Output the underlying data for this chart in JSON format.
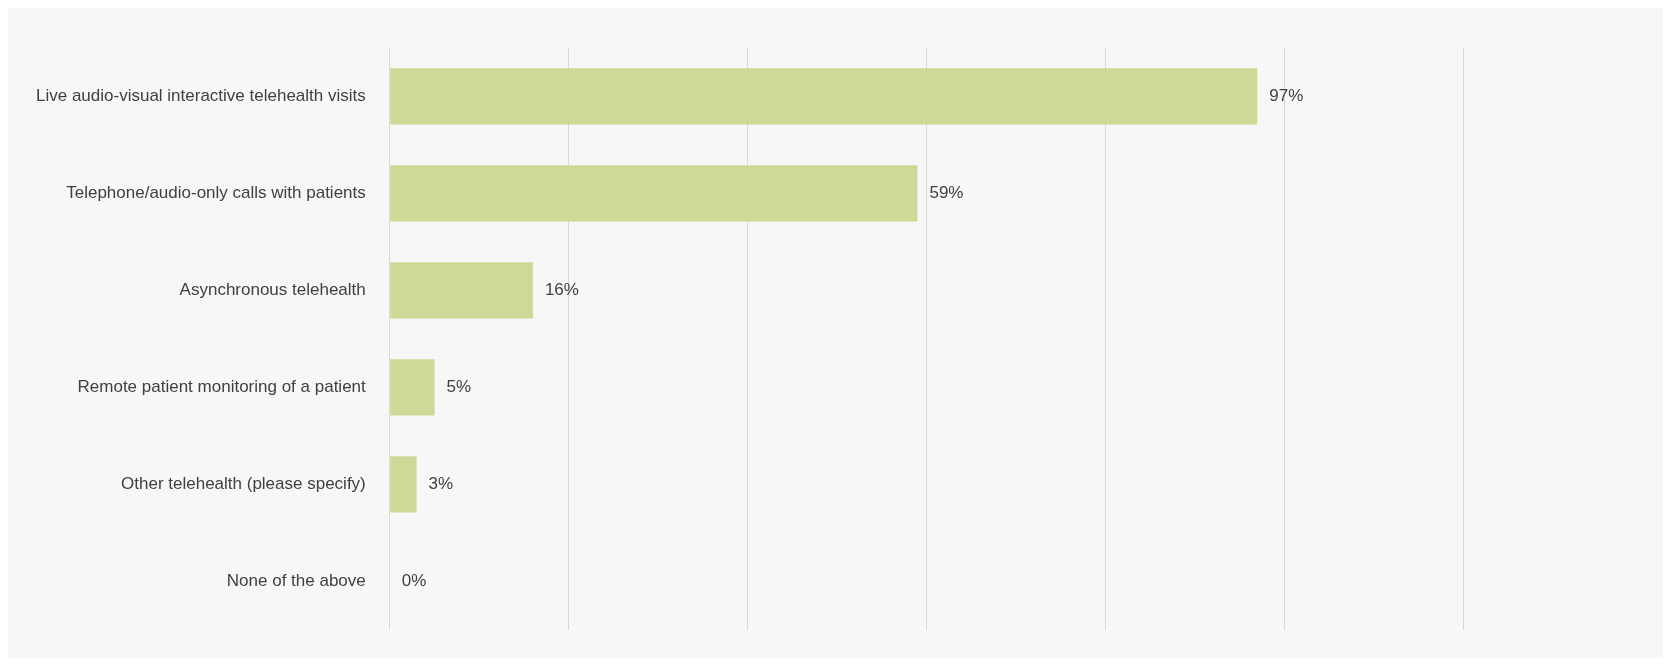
{
  "chart_data": {
    "type": "bar",
    "orientation": "horizontal",
    "categories": [
      "Live audio-visual interactive telehealth visits",
      "Telephone/audio-only calls with patients",
      "Asynchronous telehealth",
      "Remote patient monitoring of a patient",
      "Other telehealth (please specify)",
      "None of the above"
    ],
    "values": [
      97,
      59,
      16,
      5,
      3,
      0
    ],
    "value_labels": [
      "97%",
      "59%",
      "16%",
      "5%",
      "3%",
      "0%"
    ],
    "color": "#cdd996",
    "xlim": [
      0,
      120
    ],
    "xticks": [
      {
        "value": 0,
        "label": null
      },
      {
        "value": 20,
        "label": null
      },
      {
        "value": 40,
        "label": null
      },
      {
        "value": 60,
        "label": null
      },
      {
        "value": 80,
        "label": null
      },
      {
        "value": 100,
        "label": null
      },
      {
        "value": 120,
        "label": null
      }
    ],
    "tick_labels": "y",
    "grid": "x"
  }
}
